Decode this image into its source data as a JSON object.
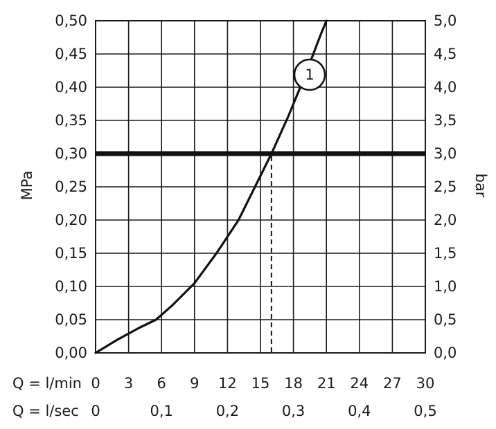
{
  "chart_data": {
    "type": "line",
    "x_label": "Q = l/min",
    "x_ticks": [
      "0",
      "3",
      "6",
      "9",
      "12",
      "15",
      "18",
      "21",
      "24",
      "27",
      "30"
    ],
    "x_secondary_label": "Q = l/sec",
    "x_secondary_ticks": [
      {
        "x": 0,
        "label": "0"
      },
      {
        "x": 6,
        "label": "0,1"
      },
      {
        "x": 12,
        "label": "0,2"
      },
      {
        "x": 18,
        "label": "0,3"
      },
      {
        "x": 24,
        "label": "0,4"
      },
      {
        "x": 30,
        "label": "0,5"
      }
    ],
    "xlim": [
      0,
      30
    ],
    "y_label_left": "MPa",
    "y_ticks_left": [
      "0,00",
      "0,05",
      "0,10",
      "0,15",
      "0,20",
      "0,25",
      "0,30",
      "0,35",
      "0,40",
      "0,45",
      "0,50"
    ],
    "y_label_right": "bar",
    "y_ticks_right": [
      "0,0",
      "0,5",
      "1,0",
      "1,5",
      "2,0",
      "2,5",
      "3,0",
      "3,5",
      "4,0",
      "4,5",
      "5,0"
    ],
    "ylim": [
      0,
      0.5
    ],
    "grid": true,
    "series": [
      {
        "label": "1",
        "x": [
          0,
          2,
          4,
          5.5,
          7,
          9,
          11,
          13,
          14.5,
          16,
          17.5,
          19,
          20.5,
          21
        ],
        "y": [
          0.0,
          0.02,
          0.038,
          0.05,
          0.072,
          0.105,
          0.15,
          0.2,
          0.25,
          0.3,
          0.355,
          0.415,
          0.48,
          0.5
        ]
      }
    ],
    "reference_line": {
      "y": 0.3
    },
    "reference_drop": {
      "x": 16,
      "y": 0.3
    }
  }
}
